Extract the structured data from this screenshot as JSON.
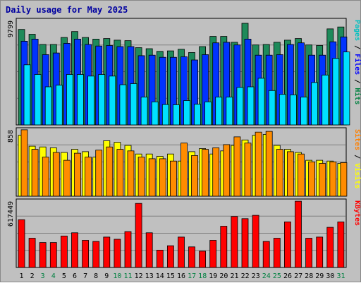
{
  "chart_data": {
    "type": "bar",
    "title": "Daily usage for May 2025",
    "categories": [
      "1",
      "2",
      "3",
      "4",
      "5",
      "6",
      "7",
      "8",
      "9",
      "10",
      "11",
      "12",
      "13",
      "14",
      "15",
      "16",
      "17",
      "18",
      "19",
      "20",
      "21",
      "22",
      "23",
      "24",
      "25",
      "26",
      "27",
      "28",
      "29",
      "30",
      "31"
    ],
    "weekend_days": [
      "3",
      "4",
      "10",
      "11",
      "17",
      "18",
      "24",
      "25",
      "31"
    ],
    "panels": [
      {
        "name": "hits-files-pages",
        "ymax": 9799,
        "max_label": "9799",
        "side_labels": [
          {
            "text": "Pages",
            "color": "#00c0c0"
          },
          {
            "text": " / ",
            "color": "#000000"
          },
          {
            "text": "Files",
            "color": "#0000ff"
          },
          {
            "text": " / ",
            "color": "#000000"
          },
          {
            "text": "Hits",
            "color": "#008040"
          }
        ],
        "series": [
          {
            "name": "Hits",
            "color": "#1e8a5a",
            "values": [
              8900,
              8450,
              7500,
              7500,
              8150,
              8700,
              8150,
              8000,
              8050,
              7900,
              7850,
              7200,
              7100,
              6850,
              6900,
              7050,
              6750,
              7300,
              8250,
              8250,
              7700,
              9470,
              7450,
              7500,
              7700,
              7900,
              8050,
              7450,
              7400,
              8950,
              9130
            ]
          },
          {
            "name": "Files",
            "color": "#0033ff",
            "values": [
              7800,
              8000,
              6550,
              6700,
              7600,
              8000,
              7500,
              7350,
              7400,
              7300,
              7300,
              6450,
              6500,
              6300,
              6300,
              6350,
              6050,
              6550,
              7650,
              7700,
              7450,
              8000,
              6500,
              6500,
              6550,
              7500,
              7650,
              6500,
              6500,
              7750,
              8200
            ]
          },
          {
            "name": "Pages",
            "color": "#00e0ff",
            "values": [
              5600,
              4700,
              3550,
              3700,
              4700,
              4700,
              4550,
              4700,
              4550,
              3750,
              3850,
              2600,
              2150,
              1900,
              1880,
              2270,
              1930,
              2150,
              2600,
              2600,
              3500,
              3550,
              4350,
              3200,
              2850,
              2800,
              2600,
              3950,
              4650,
              6200,
              6800
            ]
          }
        ]
      },
      {
        "name": "visits-sites",
        "ymax": 858,
        "max_label": "858",
        "side_labels": [
          {
            "text": "Sites",
            "color": "#ff8000"
          },
          {
            "text": " / ",
            "color": "#000000"
          },
          {
            "text": "Visits",
            "color": "#ffff00"
          }
        ],
        "series": [
          {
            "name": "Visits",
            "color": "#ffff00",
            "values": [
              780,
              640,
              630,
              620,
              560,
              600,
              570,
              500,
              710,
              690,
              650,
              540,
              540,
              510,
              540,
              450,
              570,
              610,
              540,
              580,
              650,
              720,
              780,
              790,
              650,
              600,
              560,
              460,
              460,
              450,
              420
            ]
          },
          {
            "name": "Sites",
            "color": "#ff8c00",
            "values": [
              850,
              600,
              500,
              560,
              460,
              550,
              500,
              590,
              630,
              600,
              580,
              500,
              480,
              480,
              450,
              680,
              520,
              600,
              620,
              660,
              760,
              680,
              820,
              830,
              600,
              570,
              540,
              440,
              420,
              440,
              430
            ]
          }
        ]
      },
      {
        "name": "kbytes",
        "ymax": 617449,
        "max_label": "617449",
        "side_labels": [
          {
            "text": "KBytes",
            "color": "#ff0000"
          }
        ],
        "series": [
          {
            "name": "KBytes",
            "color": "#ff0000",
            "values": [
              440000,
              270000,
              230000,
              230000,
              290000,
              320000,
              250000,
              240000,
              280000,
              260000,
              330000,
              590000,
              320000,
              160000,
              200000,
              280000,
              190000,
              150000,
              250000,
              380000,
              470000,
              450000,
              480000,
              240000,
              270000,
              420000,
              610000,
              270000,
              280000,
              370000,
              420000
            ]
          }
        ]
      }
    ]
  }
}
